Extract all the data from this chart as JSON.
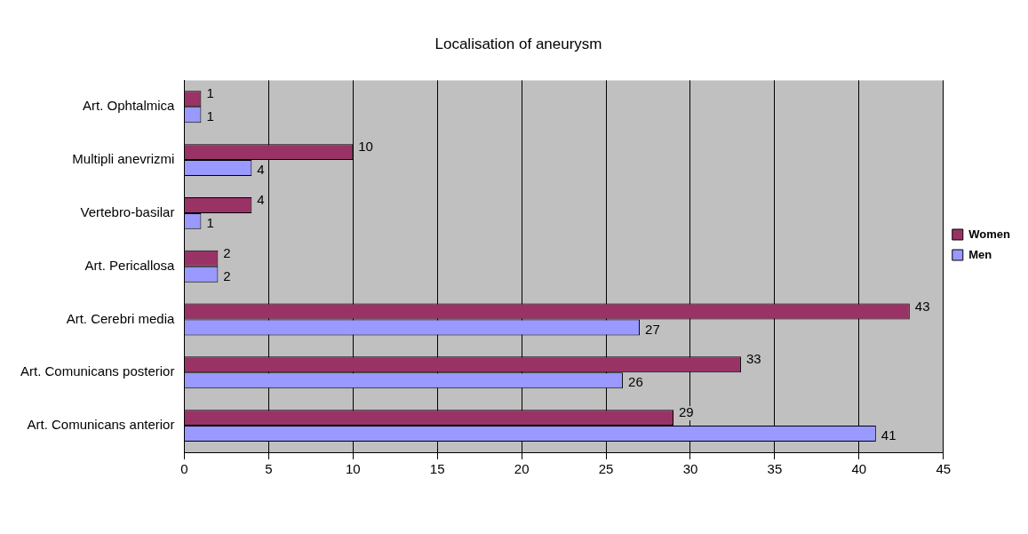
{
  "chart_data": {
    "type": "bar",
    "orientation": "horizontal",
    "title": "Localisation of aneurysm",
    "categories": [
      "Art. Ophtalmica",
      "Multipli anevrizmi",
      "Vertebro-basilar",
      "Art. Pericallosa",
      "Art. Cerebri media",
      "Art. Comunicans posterior",
      "Art. Comunicans anterior"
    ],
    "series": [
      {
        "name": "Women",
        "color": "#993366",
        "values": [
          1,
          10,
          4,
          2,
          43,
          33,
          29
        ]
      },
      {
        "name": "Men",
        "color": "#9999ff",
        "values": [
          1,
          4,
          1,
          2,
          27,
          26,
          41
        ]
      }
    ],
    "xlim": [
      0,
      45
    ],
    "xticks": [
      0,
      5,
      10,
      15,
      20,
      25,
      30,
      35,
      40,
      45
    ],
    "grid": "x",
    "legend": "right",
    "data_labels": true
  }
}
